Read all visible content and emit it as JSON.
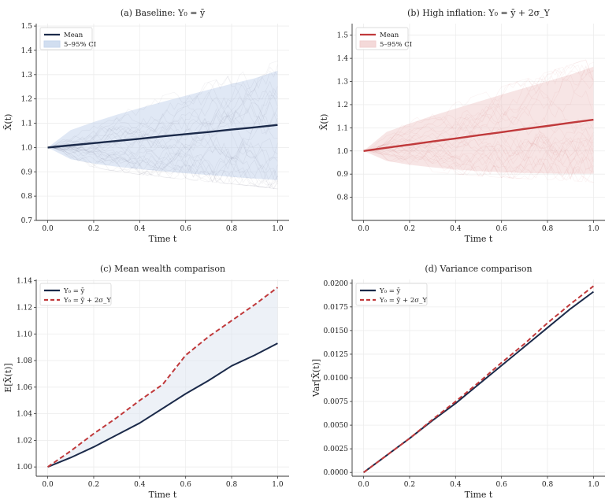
{
  "colors": {
    "navy": "#1b2a4a",
    "red": "#c0393b",
    "blue_band": "#c6d6ec",
    "red_band": "#f1cfd0",
    "gap_band": "#dfe6f0"
  },
  "chart_data": [
    {
      "type": "area",
      "panel_id": "a",
      "title": "(a) Baseline: Y₀ = ȳ",
      "xlabel": "Time t",
      "ylabel": "X̃(t)",
      "xlim": [
        -0.05,
        1.05
      ],
      "ylim": [
        0.7,
        1.51
      ],
      "xticks": [
        0.0,
        0.2,
        0.4,
        0.6,
        0.8,
        1.0
      ],
      "xtick_labels": [
        "0.0",
        "0.2",
        "0.4",
        "0.6",
        "0.8",
        "1.0"
      ],
      "yticks": [
        0.7,
        0.8,
        0.9,
        1.0,
        1.1,
        1.2,
        1.3,
        1.4,
        1.5
      ],
      "ytick_labels": [
        "0.7",
        "0.8",
        "0.9",
        "1.0",
        "1.1",
        "1.2",
        "1.3",
        "1.4",
        "1.5"
      ],
      "legend": [
        {
          "label": "Mean",
          "kind": "line"
        },
        {
          "label": "5–95% CI",
          "kind": "band"
        }
      ],
      "legend_position": "top-left",
      "x": [
        0.0,
        0.1,
        0.2,
        0.3,
        0.4,
        0.5,
        0.6,
        0.7,
        0.8,
        0.9,
        1.0
      ],
      "series": [
        {
          "name": "Mean",
          "values": [
            1.0,
            1.009,
            1.018,
            1.027,
            1.036,
            1.046,
            1.055,
            1.064,
            1.074,
            1.083,
            1.093
          ]
        },
        {
          "name": "5% bound",
          "values": [
            1.0,
            0.952,
            0.934,
            0.921,
            0.911,
            0.902,
            0.894,
            0.887,
            0.879,
            0.872,
            0.866
          ]
        },
        {
          "name": "95% bound",
          "values": [
            1.0,
            1.072,
            1.105,
            1.135,
            1.162,
            1.188,
            1.213,
            1.238,
            1.262,
            1.285,
            1.316
          ]
        }
      ]
    },
    {
      "type": "area",
      "panel_id": "b",
      "title": "(b) High inflation: Y₀ = ȳ + 2σ_Y",
      "xlabel": "Time t",
      "ylabel": "X̃(t)",
      "xlim": [
        -0.05,
        1.05
      ],
      "ylim": [
        0.7,
        1.55
      ],
      "xticks": [
        0.0,
        0.2,
        0.4,
        0.6,
        0.8,
        1.0
      ],
      "xtick_labels": [
        "0.0",
        "0.2",
        "0.4",
        "0.6",
        "0.8",
        "1.0"
      ],
      "yticks": [
        0.8,
        0.9,
        1.0,
        1.1,
        1.2,
        1.3,
        1.4,
        1.5
      ],
      "ytick_labels": [
        "0.8",
        "0.9",
        "1.0",
        "1.1",
        "1.2",
        "1.3",
        "1.4",
        "1.5"
      ],
      "legend": [
        {
          "label": "Mean",
          "kind": "line"
        },
        {
          "label": "5–95% CI",
          "kind": "band"
        }
      ],
      "legend_position": "top-left",
      "x": [
        0.0,
        0.1,
        0.2,
        0.3,
        0.4,
        0.5,
        0.6,
        0.7,
        0.8,
        0.9,
        1.0
      ],
      "series": [
        {
          "name": "Mean",
          "values": [
            1.0,
            1.014,
            1.027,
            1.041,
            1.054,
            1.068,
            1.081,
            1.095,
            1.108,
            1.122,
            1.135
          ]
        },
        {
          "name": "5% bound",
          "values": [
            1.0,
            0.957,
            0.94,
            0.929,
            0.92,
            0.913,
            0.908,
            0.905,
            0.903,
            0.902,
            0.902
          ]
        },
        {
          "name": "95% bound",
          "values": [
            1.0,
            1.082,
            1.118,
            1.152,
            1.183,
            1.213,
            1.243,
            1.272,
            1.301,
            1.33,
            1.364
          ]
        }
      ]
    },
    {
      "type": "line",
      "panel_id": "c",
      "title": "(c) Mean wealth comparison",
      "xlabel": "Time t",
      "ylabel": "E[X̃(t)]",
      "xlim": [
        -0.05,
        1.05
      ],
      "ylim": [
        0.993,
        1.141
      ],
      "xticks": [
        0.0,
        0.2,
        0.4,
        0.6,
        0.8,
        1.0
      ],
      "xtick_labels": [
        "0.0",
        "0.2",
        "0.4",
        "0.6",
        "0.8",
        "1.0"
      ],
      "yticks": [
        1.0,
        1.02,
        1.04,
        1.06,
        1.08,
        1.1,
        1.12,
        1.14
      ],
      "ytick_labels": [
        "1.00",
        "1.02",
        "1.04",
        "1.06",
        "1.08",
        "1.10",
        "1.12",
        "1.14"
      ],
      "legend": [
        {
          "label": "Y₀ = ȳ",
          "kind": "line"
        },
        {
          "label": "Y₀ = ȳ + 2σ_Y",
          "kind": "dashed"
        }
      ],
      "legend_position": "top-left",
      "x": [
        0.0,
        0.1,
        0.2,
        0.3,
        0.4,
        0.5,
        0.6,
        0.7,
        0.8,
        0.9,
        1.0
      ],
      "series": [
        {
          "name": "Y₀ = ȳ",
          "values": [
            1.0,
            1.007,
            1.015,
            1.024,
            1.033,
            1.044,
            1.055,
            1.065,
            1.076,
            1.084,
            1.093
          ]
        },
        {
          "name": "Y₀ = ȳ + 2σ_Y",
          "values": [
            1.0,
            1.012,
            1.025,
            1.037,
            1.05,
            1.062,
            1.084,
            1.098,
            1.11,
            1.122,
            1.135
          ]
        }
      ]
    },
    {
      "type": "line",
      "panel_id": "d",
      "title": "(d) Variance comparison",
      "xlabel": "Time t",
      "ylabel": "Var[X̃(t)]",
      "xlim": [
        -0.05,
        1.05
      ],
      "ylim": [
        -0.0004,
        0.0204
      ],
      "xticks": [
        0.0,
        0.2,
        0.4,
        0.6,
        0.8,
        1.0
      ],
      "xtick_labels": [
        "0.0",
        "0.2",
        "0.4",
        "0.6",
        "0.8",
        "1.0"
      ],
      "yticks": [
        0.0,
        0.0025,
        0.005,
        0.0075,
        0.01,
        0.0125,
        0.015,
        0.0175,
        0.02
      ],
      "ytick_labels": [
        "0.0000",
        "0.0025",
        "0.0050",
        "0.0075",
        "0.0100",
        "0.0125",
        "0.0150",
        "0.0175",
        "0.0200"
      ],
      "legend": [
        {
          "label": "Y₀ = ȳ",
          "kind": "line"
        },
        {
          "label": "Y₀ = ȳ + 2σ_Y",
          "kind": "dashed"
        }
      ],
      "legend_position": "top-left",
      "x": [
        0.0,
        0.1,
        0.2,
        0.3,
        0.4,
        0.5,
        0.6,
        0.7,
        0.8,
        0.9,
        1.0
      ],
      "series": [
        {
          "name": "Y₀ = ȳ",
          "values": [
            0.0,
            0.0018,
            0.0036,
            0.0055,
            0.0073,
            0.0093,
            0.0113,
            0.0133,
            0.0153,
            0.0173,
            0.0191
          ]
        },
        {
          "name": "Y₀ = ȳ + 2σ_Y",
          "values": [
            0.0,
            0.0018,
            0.0036,
            0.0056,
            0.0075,
            0.0095,
            0.0116,
            0.0136,
            0.0158,
            0.0178,
            0.0197
          ]
        }
      ]
    }
  ]
}
